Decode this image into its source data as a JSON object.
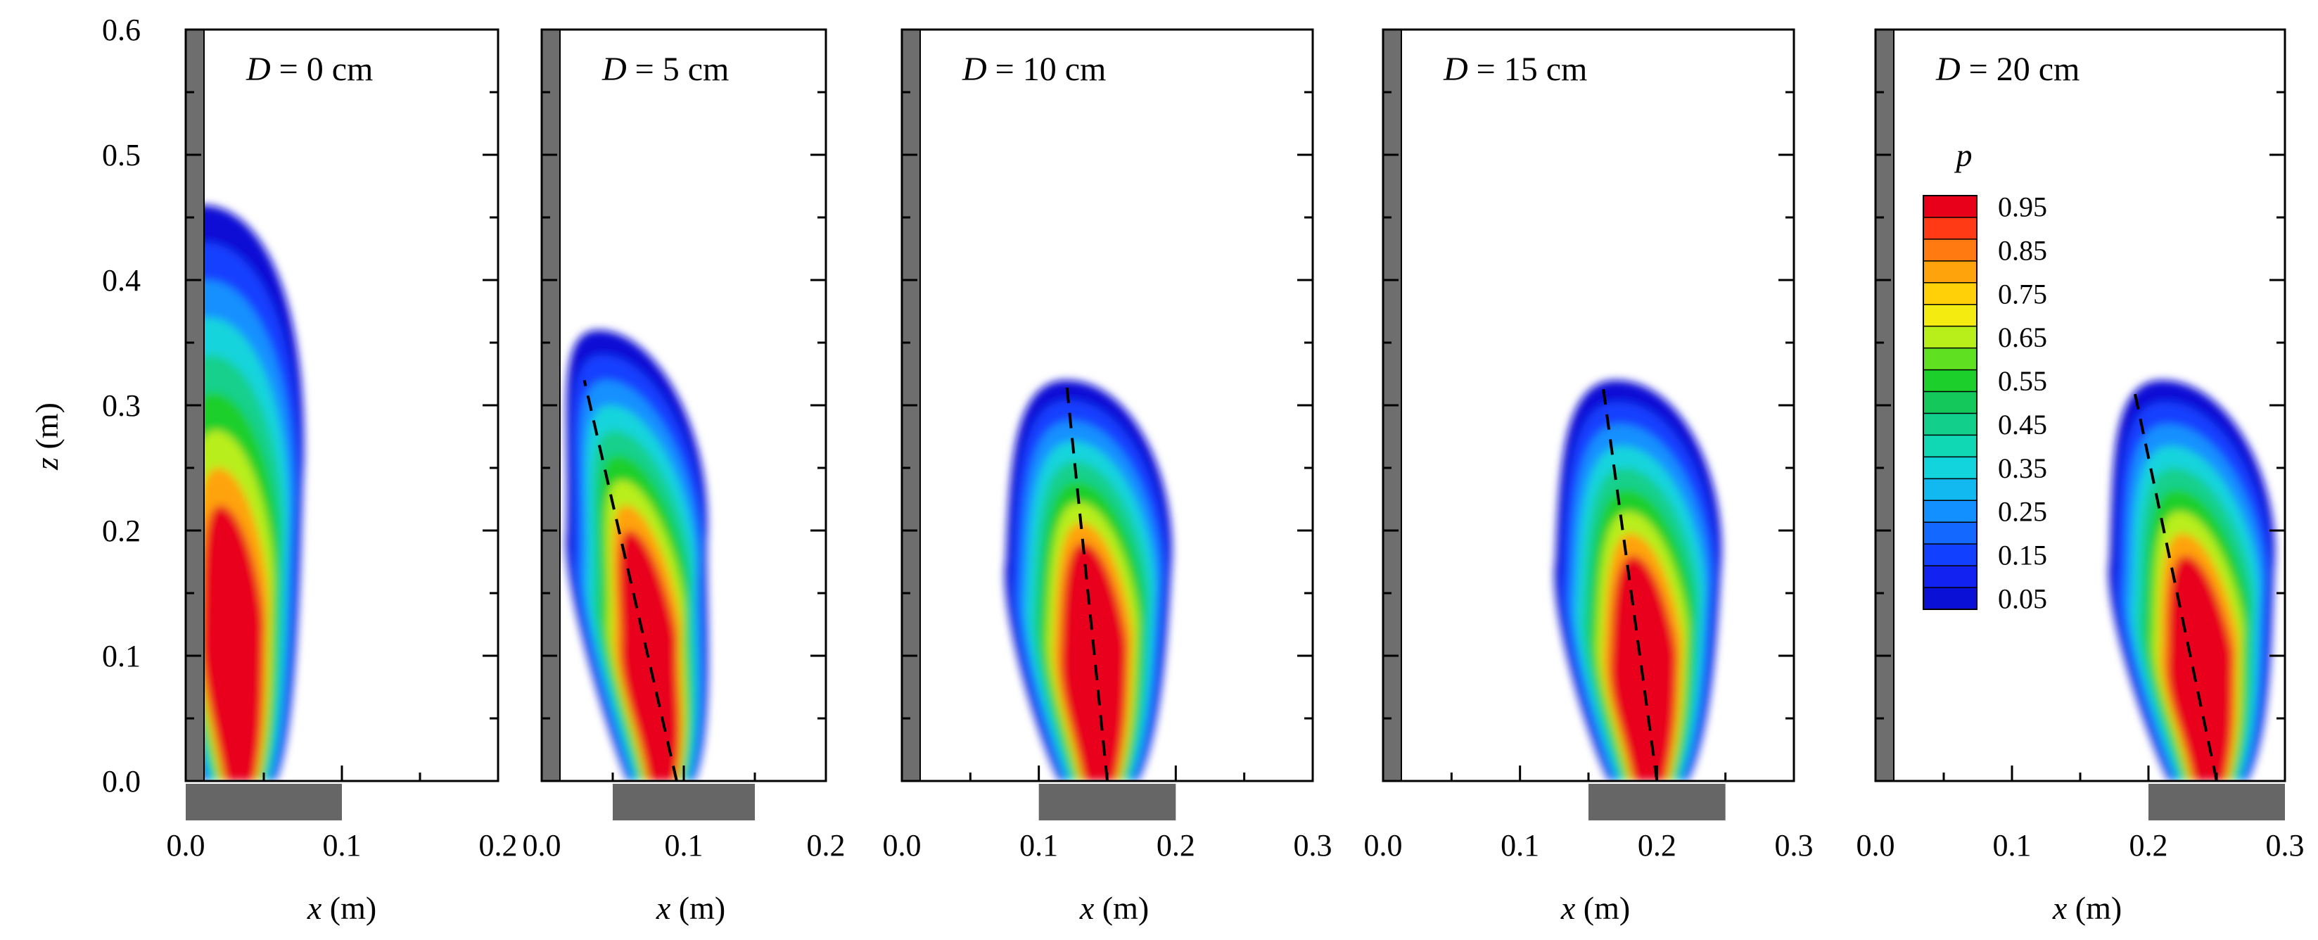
{
  "chart_data": {
    "type": "heatmap",
    "shared_y": {
      "label_var": "z",
      "label_unit": " (m)",
      "range": [
        0.0,
        0.6
      ],
      "ticks": [
        "0.0",
        "0.1",
        "0.2",
        "0.3",
        "0.4",
        "0.5",
        "0.6"
      ]
    },
    "x_label_var": "x",
    "x_label_unit": " (m)",
    "panels": [
      {
        "title_var": "D",
        "title_rest": " = 0 cm",
        "xlim": [
          0.0,
          0.2
        ],
        "xticks": [
          "0.0",
          "0.1",
          "0.2"
        ],
        "source_x": [
          0.0,
          0.1
        ],
        "plume": {
          "base_x": 0.035,
          "top_x": 0.01,
          "h95": 0.22,
          "h45": 0.28,
          "h05": 0.46,
          "w": 0.045
        },
        "centerline": null
      },
      {
        "title_var": "D",
        "title_rest": " = 5 cm",
        "xlim": [
          0.0,
          0.2
        ],
        "xticks": [
          "0.0",
          "0.1",
          "0.2"
        ],
        "source_x": [
          0.05,
          0.15
        ],
        "plume": {
          "base_x": 0.085,
          "top_x": 0.04,
          "h95": 0.2,
          "h45": 0.27,
          "h05": 0.36,
          "w": 0.045
        },
        "centerline": {
          "from": [
            0.095,
            0.0
          ],
          "to": [
            0.03,
            0.32
          ]
        }
      },
      {
        "title_var": "D",
        "title_rest": " = 10 cm",
        "xlim": [
          0.0,
          0.3
        ],
        "xticks": [
          "0.0",
          "0.1",
          "0.2",
          "0.3"
        ],
        "source_x": [
          0.1,
          0.2
        ],
        "plume": {
          "base_x": 0.145,
          "top_x": 0.12,
          "h95": 0.19,
          "h45": 0.24,
          "h05": 0.32,
          "w": 0.055
        },
        "centerline": {
          "from": [
            0.15,
            0.0
          ],
          "to": [
            0.12,
            0.32
          ]
        }
      },
      {
        "title_var": "D",
        "title_rest": " = 15 cm",
        "xlim": [
          0.0,
          0.3
        ],
        "xticks": [
          "0.0",
          "0.1",
          "0.2",
          "0.3"
        ],
        "source_x": [
          0.15,
          0.25
        ],
        "plume": {
          "base_x": 0.195,
          "top_x": 0.17,
          "h95": 0.18,
          "h45": 0.23,
          "h05": 0.32,
          "w": 0.055
        },
        "centerline": {
          "from": [
            0.2,
            0.0
          ],
          "to": [
            0.16,
            0.32
          ]
        }
      },
      {
        "title_var": "D",
        "title_rest": " = 20 cm",
        "xlim": [
          0.0,
          0.3
        ],
        "xticks": [
          "0.0",
          "0.1",
          "0.2",
          "0.3"
        ],
        "source_x": [
          0.2,
          0.3
        ],
        "plume": {
          "base_x": 0.245,
          "top_x": 0.21,
          "h95": 0.18,
          "h45": 0.23,
          "h05": 0.32,
          "w": 0.055
        },
        "centerline": {
          "from": [
            0.25,
            0.0
          ],
          "to": [
            0.19,
            0.31
          ]
        }
      }
    ],
    "colorbar": {
      "title": "p",
      "levels": [
        {
          "label": "0.95",
          "color": "#e8001a"
        },
        {
          "label": "",
          "color": "#ff3a14"
        },
        {
          "label": "0.85",
          "color": "#ff7a10"
        },
        {
          "label": "",
          "color": "#ffa30c"
        },
        {
          "label": "0.75",
          "color": "#ffcf08"
        },
        {
          "label": "",
          "color": "#f4ec10"
        },
        {
          "label": "0.65",
          "color": "#b8ee1a"
        },
        {
          "label": "",
          "color": "#5fe020"
        },
        {
          "label": "0.55",
          "color": "#1ccf2a"
        },
        {
          "label": "",
          "color": "#14c85c"
        },
        {
          "label": "0.45",
          "color": "#12d08c"
        },
        {
          "label": "",
          "color": "#10d8b4"
        },
        {
          "label": "0.35",
          "color": "#12d4dc"
        },
        {
          "label": "",
          "color": "#12b8f0"
        },
        {
          "label": "0.25",
          "color": "#1290ff"
        },
        {
          "label": "",
          "color": "#1268ff"
        },
        {
          "label": "0.15",
          "color": "#1240ff"
        },
        {
          "label": "",
          "color": "#1222f0"
        },
        {
          "label": "0.05",
          "color": "#0a10d6"
        }
      ]
    }
  }
}
